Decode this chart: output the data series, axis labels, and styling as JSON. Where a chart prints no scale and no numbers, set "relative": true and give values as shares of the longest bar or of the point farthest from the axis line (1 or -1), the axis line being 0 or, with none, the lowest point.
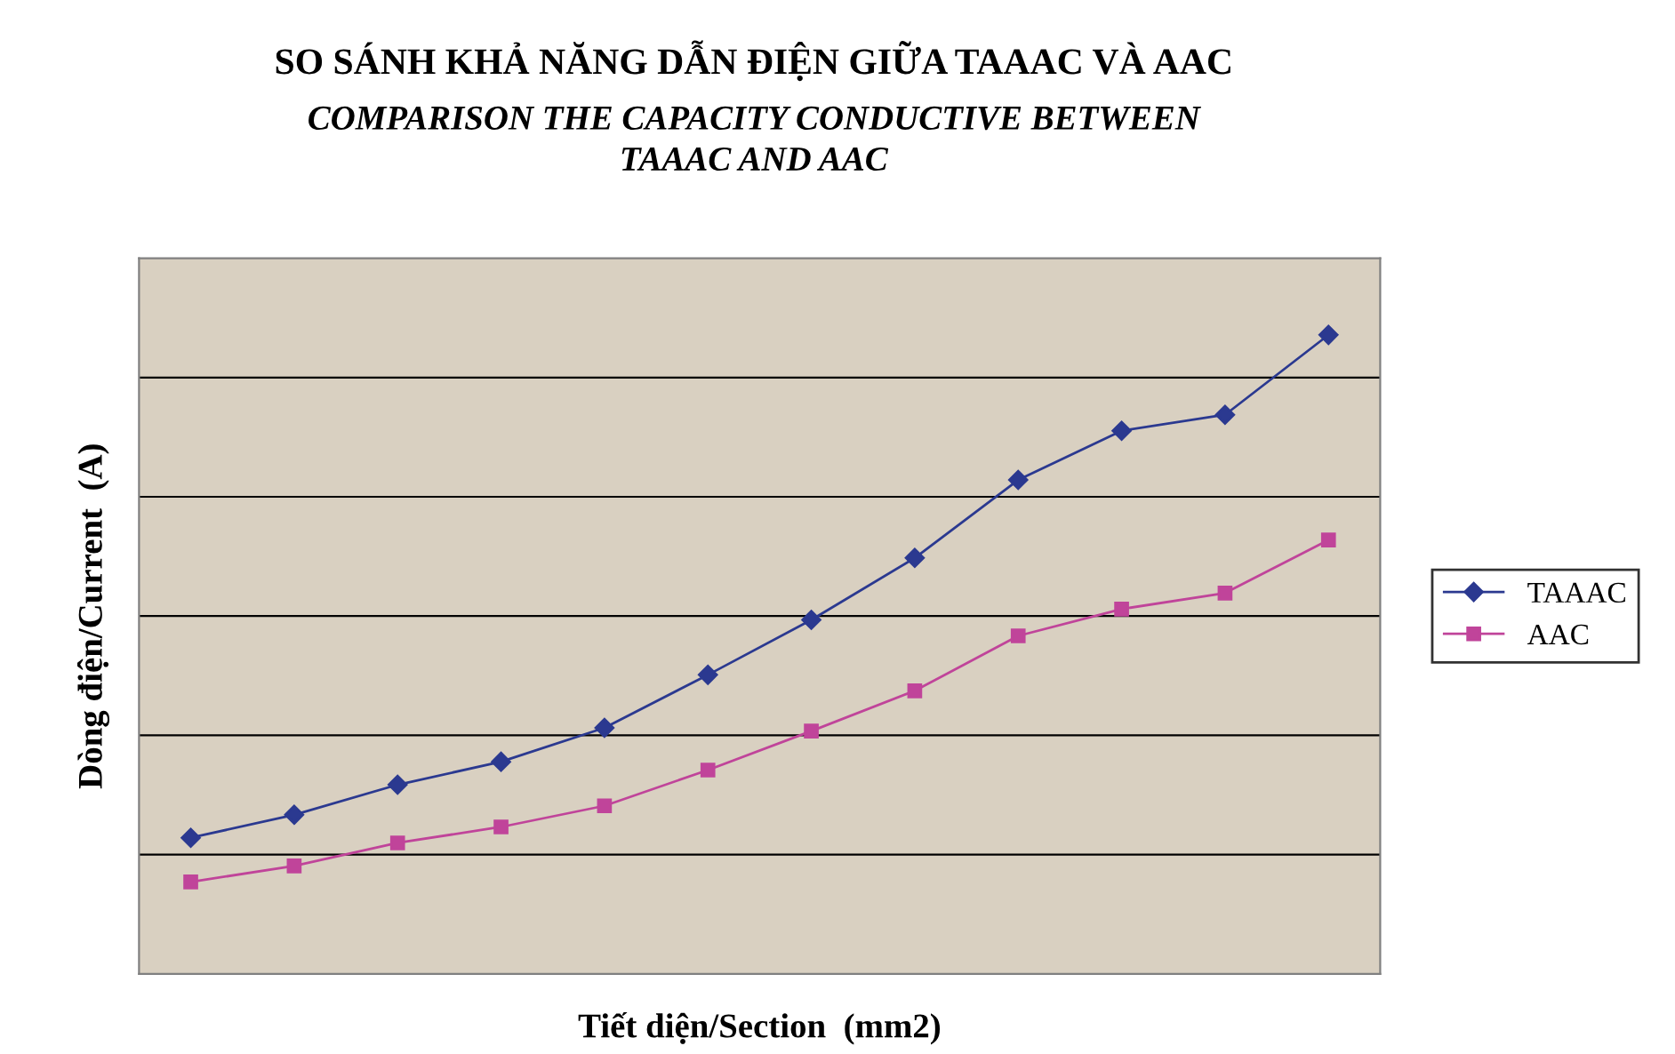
{
  "chart_data": {
    "type": "line",
    "title": "SO SÁNH KHẢ NĂNG DẪN ĐIỆN GIỮA TAAAC VÀ AAC",
    "subtitle": "COMPARISON THE CAPACITY CONDUCTIVE BETWEEN\nTAAAC AND AAC",
    "xlabel": "Tiết diện/Section  (mm2)",
    "ylabel": "Dòng điện/Current  (A)",
    "relative": true,
    "categories": [
      null,
      null,
      null,
      null,
      null,
      null,
      null,
      null,
      null,
      null,
      null,
      null
    ],
    "series": [
      {
        "name": "TAAAC",
        "color": "#2b3990",
        "marker": "diamond",
        "values": [
          0.213,
          0.249,
          0.296,
          0.332,
          0.385,
          0.468,
          0.554,
          0.651,
          0.773,
          0.85,
          0.875,
          1
        ]
      },
      {
        "name": "AAC",
        "color": "#c0449a",
        "marker": "square",
        "values": [
          0.144,
          0.169,
          0.205,
          0.23,
          0.263,
          0.319,
          0.38,
          0.443,
          0.529,
          0.571,
          0.596,
          0.679
        ]
      }
    ],
    "grid": "y",
    "legend": "right",
    "line_style": "solid"
  }
}
